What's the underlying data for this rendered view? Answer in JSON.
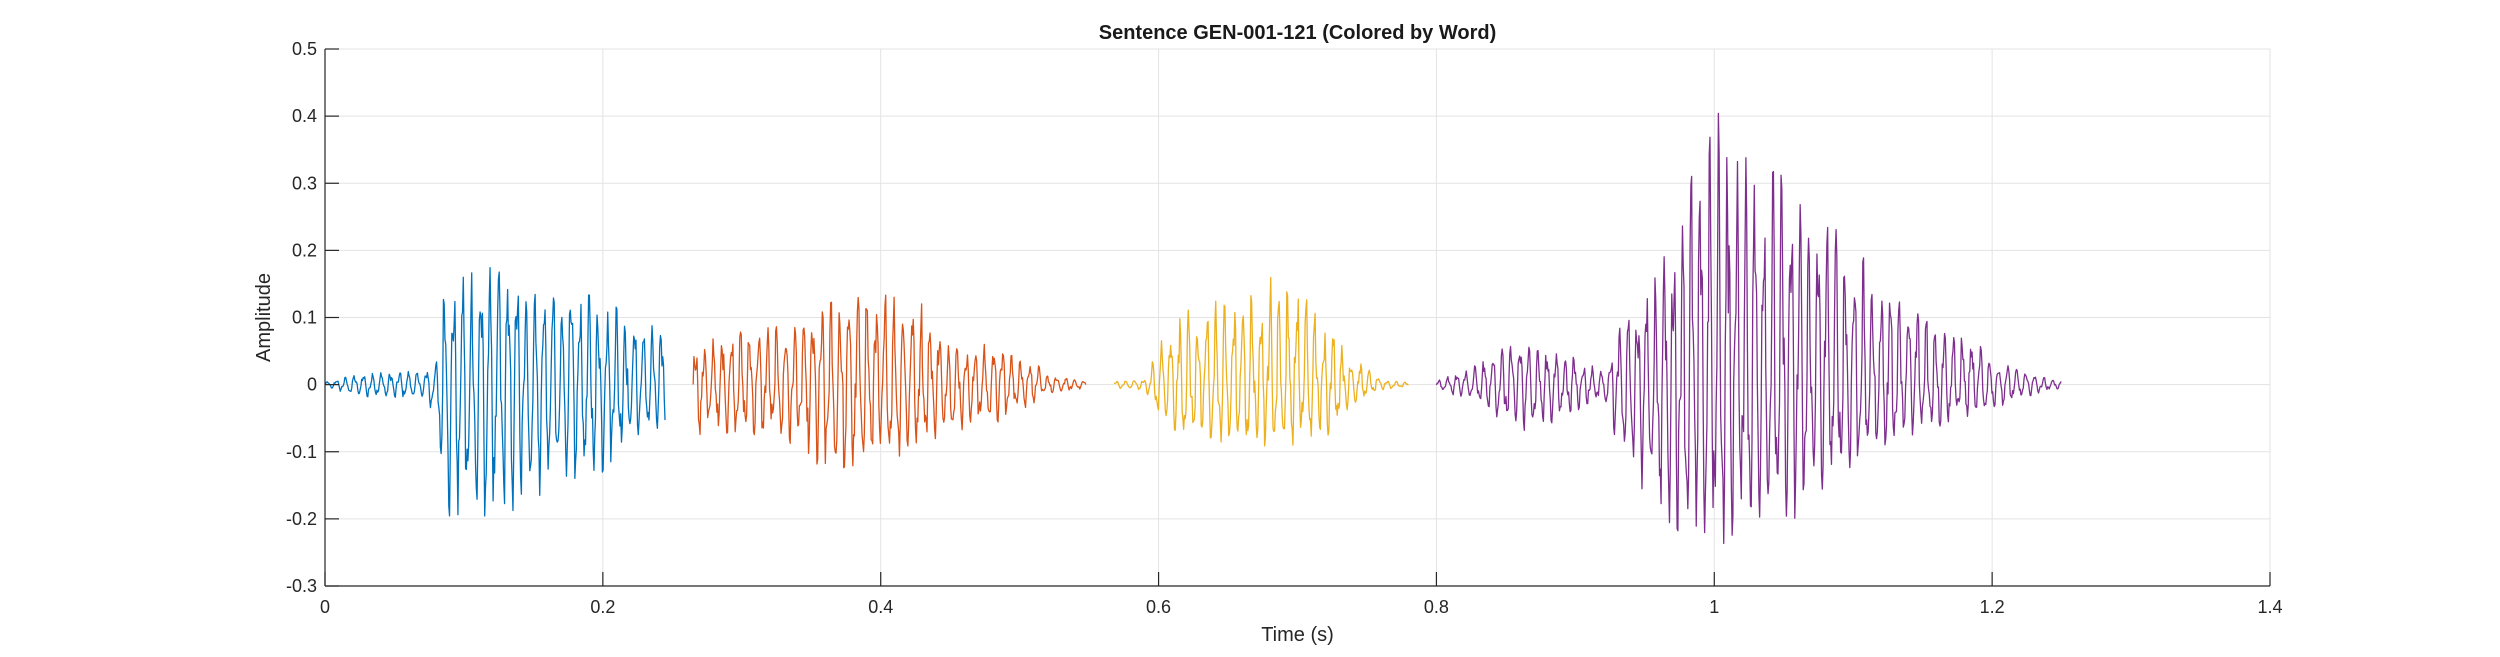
{
  "chart_data": {
    "type": "line",
    "title": "Sentence GEN-001-121 (Colored by Word)",
    "xlabel": "Time (s)",
    "ylabel": "Amplitude",
    "xlim": [
      0,
      1.4
    ],
    "ylim": [
      -0.3,
      0.5
    ],
    "x_ticks": [
      0,
      0.2,
      0.4,
      0.6,
      0.8,
      1,
      1.2,
      1.4
    ],
    "x_tick_labels": [
      "0",
      "0.2",
      "0.4",
      "0.6",
      "0.8",
      "1",
      "1.2",
      "1.4"
    ],
    "y_ticks": [
      -0.3,
      -0.2,
      -0.1,
      0,
      0.1,
      0.2,
      0.3,
      0.4,
      0.5
    ],
    "y_tick_labels": [
      "-0.3",
      "-0.2",
      "-0.1",
      "0",
      "0.1",
      "0.2",
      "0.3",
      "0.4",
      "0.5"
    ],
    "grid": true,
    "legend": "none",
    "series": [
      {
        "color": "#0072BD",
        "start": 0.0,
        "end": 0.245,
        "envelope": [
          [
            0.0,
            0.004
          ],
          [
            0.03,
            0.018
          ],
          [
            0.07,
            0.02
          ],
          [
            0.08,
            0.03
          ],
          [
            0.085,
            0.15
          ],
          [
            0.11,
            0.17
          ],
          [
            0.13,
            0.18
          ],
          [
            0.15,
            0.16
          ],
          [
            0.17,
            0.14
          ],
          [
            0.2,
            0.13
          ],
          [
            0.22,
            0.1
          ],
          [
            0.245,
            0.08
          ]
        ],
        "neg_envelope": [
          [
            0.0,
            0.004
          ],
          [
            0.03,
            0.02
          ],
          [
            0.07,
            0.02
          ],
          [
            0.08,
            0.05
          ],
          [
            0.085,
            0.19
          ],
          [
            0.11,
            0.22
          ],
          [
            0.13,
            0.2
          ],
          [
            0.15,
            0.18
          ],
          [
            0.17,
            0.15
          ],
          [
            0.2,
            0.13
          ],
          [
            0.22,
            0.08
          ],
          [
            0.245,
            0.07
          ]
        ],
        "cycle": 0.0065
      },
      {
        "color": "#D95319",
        "start": 0.265,
        "end": 0.548,
        "envelope": [
          [
            0.265,
            0.06
          ],
          [
            0.3,
            0.08
          ],
          [
            0.34,
            0.09
          ],
          [
            0.37,
            0.13
          ],
          [
            0.39,
            0.14
          ],
          [
            0.41,
            0.13
          ],
          [
            0.43,
            0.12
          ],
          [
            0.45,
            0.06
          ],
          [
            0.48,
            0.06
          ],
          [
            0.5,
            0.055
          ],
          [
            0.52,
            0.015
          ],
          [
            0.548,
            0.005
          ]
        ],
        "neg_envelope": [
          [
            0.265,
            0.08
          ],
          [
            0.3,
            0.07
          ],
          [
            0.34,
            0.09
          ],
          [
            0.37,
            0.15
          ],
          [
            0.39,
            0.12
          ],
          [
            0.41,
            0.11
          ],
          [
            0.43,
            0.09
          ],
          [
            0.45,
            0.07
          ],
          [
            0.48,
            0.06
          ],
          [
            0.5,
            0.04
          ],
          [
            0.52,
            0.015
          ],
          [
            0.548,
            0.005
          ]
        ],
        "cycle": 0.0065
      },
      {
        "color": "#EDB120",
        "start": 0.568,
        "end": 0.78,
        "envelope": [
          [
            0.568,
            0.005
          ],
          [
            0.59,
            0.008
          ],
          [
            0.6,
            0.06
          ],
          [
            0.62,
            0.11
          ],
          [
            0.65,
            0.13
          ],
          [
            0.68,
            0.16
          ],
          [
            0.7,
            0.15
          ],
          [
            0.72,
            0.1
          ],
          [
            0.74,
            0.04
          ],
          [
            0.76,
            0.008
          ],
          [
            0.78,
            0.003
          ]
        ],
        "neg_envelope": [
          [
            0.568,
            0.005
          ],
          [
            0.59,
            0.008
          ],
          [
            0.6,
            0.05
          ],
          [
            0.62,
            0.08
          ],
          [
            0.65,
            0.1
          ],
          [
            0.68,
            0.09
          ],
          [
            0.7,
            0.09
          ],
          [
            0.72,
            0.08
          ],
          [
            0.74,
            0.03
          ],
          [
            0.76,
            0.008
          ],
          [
            0.78,
            0.003
          ]
        ],
        "cycle": 0.0065
      },
      {
        "color": "#7E2F8E",
        "start": 0.8,
        "end": 1.25,
        "envelope": [
          [
            0.8,
            0.005
          ],
          [
            0.83,
            0.03
          ],
          [
            0.86,
            0.07
          ],
          [
            0.88,
            0.05
          ],
          [
            0.9,
            0.04
          ],
          [
            0.92,
            0.02
          ],
          [
            0.935,
            0.1
          ],
          [
            0.96,
            0.17
          ],
          [
            0.98,
            0.3
          ],
          [
            1.0,
            0.41
          ],
          [
            1.02,
            0.37
          ],
          [
            1.04,
            0.32
          ],
          [
            1.06,
            0.3
          ],
          [
            1.08,
            0.25
          ],
          [
            1.1,
            0.2
          ],
          [
            1.12,
            0.17
          ],
          [
            1.15,
            0.12
          ],
          [
            1.18,
            0.08
          ],
          [
            1.2,
            0.04
          ],
          [
            1.22,
            0.02
          ],
          [
            1.25,
            0.005
          ]
        ],
        "neg_envelope": [
          [
            0.8,
            0.005
          ],
          [
            0.83,
            0.03
          ],
          [
            0.86,
            0.07
          ],
          [
            0.88,
            0.06
          ],
          [
            0.9,
            0.04
          ],
          [
            0.92,
            0.02
          ],
          [
            0.935,
            0.12
          ],
          [
            0.96,
            0.19
          ],
          [
            0.98,
            0.23
          ],
          [
            1.0,
            0.25
          ],
          [
            1.02,
            0.21
          ],
          [
            1.04,
            0.19
          ],
          [
            1.06,
            0.2
          ],
          [
            1.08,
            0.15
          ],
          [
            1.1,
            0.12
          ],
          [
            1.12,
            0.1
          ],
          [
            1.15,
            0.07
          ],
          [
            1.18,
            0.05
          ],
          [
            1.2,
            0.04
          ],
          [
            1.22,
            0.02
          ],
          [
            1.25,
            0.005
          ]
        ],
        "cycle": 0.0065
      }
    ]
  }
}
